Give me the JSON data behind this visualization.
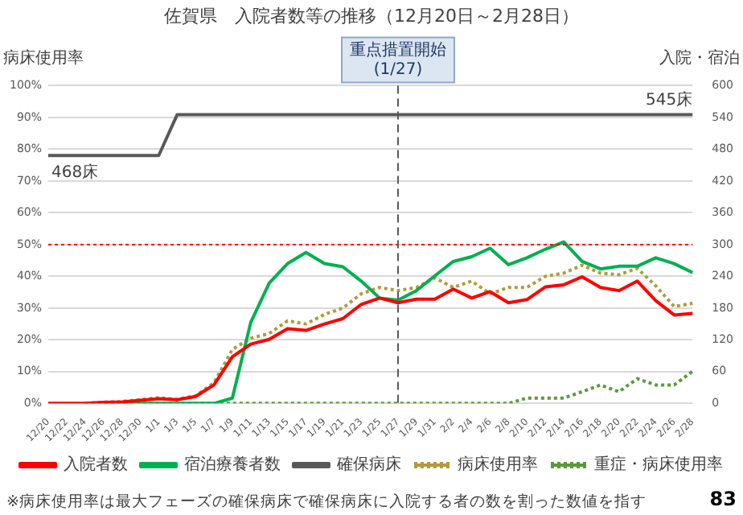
{
  "chart_data": {
    "type": "line",
    "title": "佐賀県　入院者数等の推移（12月20日～2月28日）",
    "ylabel": "病床使用率",
    "y2label": "入院・宿泊",
    "categories": [
      "12/20",
      "12/22",
      "12/24",
      "12/26",
      "12/28",
      "12/30",
      "1/1",
      "1/3",
      "1/5",
      "1/7",
      "1/9",
      "1/11",
      "1/13",
      "1/15",
      "1/17",
      "1/19",
      "1/21",
      "1/23",
      "1/25",
      "1/27",
      "1/29",
      "1/31",
      "2/2",
      "2/4",
      "2/6",
      "2/8",
      "2/10",
      "2/12",
      "2/14",
      "2/16",
      "2/18",
      "2/20",
      "2/22",
      "2/24",
      "2/26",
      "2/28"
    ],
    "series": [
      {
        "name": "入院者数",
        "color": "#ff0000",
        "axis": "y2",
        "values": [
          0,
          0,
          0,
          2,
          3,
          6,
          9,
          7,
          13,
          35,
          88,
          112,
          121,
          141,
          138,
          150,
          160,
          187,
          199,
          190,
          197,
          197,
          216,
          199,
          211,
          190,
          196,
          220,
          224,
          239,
          219,
          213,
          231,
          194,
          167,
          170
        ]
      },
      {
        "name": "宿泊療養者数",
        "color": "#00b050",
        "axis": "y2",
        "values": [
          null,
          null,
          null,
          0,
          0,
          0,
          0,
          0,
          0,
          0,
          10,
          153,
          227,
          264,
          285,
          264,
          258,
          231,
          199,
          195,
          213,
          241,
          268,
          277,
          293,
          262,
          275,
          291,
          305,
          268,
          254,
          259,
          259,
          275,
          264,
          247
        ]
      },
      {
        "name": "確保病床",
        "color": "#595959",
        "axis": "y2",
        "values": [
          468,
          468,
          468,
          468,
          468,
          468,
          468,
          545,
          545,
          545,
          545,
          545,
          545,
          545,
          545,
          545,
          545,
          545,
          545,
          545,
          545,
          545,
          545,
          545,
          545,
          545,
          545,
          545,
          545,
          545,
          545,
          545,
          545,
          545,
          545,
          545
        ]
      },
      {
        "name": "病床使用率",
        "color": "#b39a3e",
        "line_style": "dotted",
        "values": [
          null,
          null,
          0,
          0.4,
          0.6,
          1.2,
          1.8,
          1.3,
          2.4,
          6.5,
          17,
          20.5,
          22,
          26,
          25,
          28,
          30,
          34.5,
          36.5,
          35.5,
          36.5,
          39.5,
          36.5,
          38.5,
          34.5,
          36.5,
          36.5,
          40,
          41,
          43.5,
          41,
          40.5,
          42.5,
          37,
          30.5,
          31.5
        ]
      },
      {
        "name": "重症・病床使用率",
        "color": "#5a9a3a",
        "line_style": "dotted",
        "values": [
          null,
          null,
          0,
          0,
          0,
          0,
          0,
          0,
          0,
          0,
          0,
          0,
          0,
          0,
          0,
          0,
          0,
          0,
          0,
          0,
          0,
          0,
          0,
          0,
          0,
          0,
          1.7,
          1.7,
          1.7,
          3.7,
          5.8,
          3.7,
          7.8,
          5.8,
          5.8,
          10.1
        ]
      }
    ],
    "ylim": [
      0,
      100
    ],
    "yticks": [
      {
        "value": 0,
        "label": "0%"
      },
      {
        "value": 10,
        "label": "10%"
      },
      {
        "value": 20,
        "label": "20%"
      },
      {
        "value": 30,
        "label": "30%"
      },
      {
        "value": 40,
        "label": "40%"
      },
      {
        "value": 50,
        "label": "50%"
      },
      {
        "value": 60,
        "label": "60%"
      },
      {
        "value": 70,
        "label": "70%"
      },
      {
        "value": 80,
        "label": "80%"
      },
      {
        "value": 90,
        "label": "90%"
      },
      {
        "value": 100,
        "label": "100%"
      }
    ],
    "y2lim": [
      0,
      600
    ],
    "y2ticks": [
      0,
      60,
      120,
      180,
      240,
      300,
      360,
      420,
      480,
      540,
      600
    ],
    "ref_lines": [
      {
        "axis": "y",
        "value": 50,
        "color": "#ff0000",
        "line_style": "dotted"
      },
      {
        "axis": "x",
        "value": "1/27",
        "label": "重点措置開始\n(1/27)",
        "color": "#595959",
        "line_style": "dashed"
      }
    ],
    "annotations": [
      "468床",
      "545床",
      "※病床使用率は最大フェーズの確保病床で確保病床に入院する者の数を割った数値を指す",
      "83"
    ],
    "grid": "y",
    "legend": "bottom",
    "marker": "none"
  }
}
